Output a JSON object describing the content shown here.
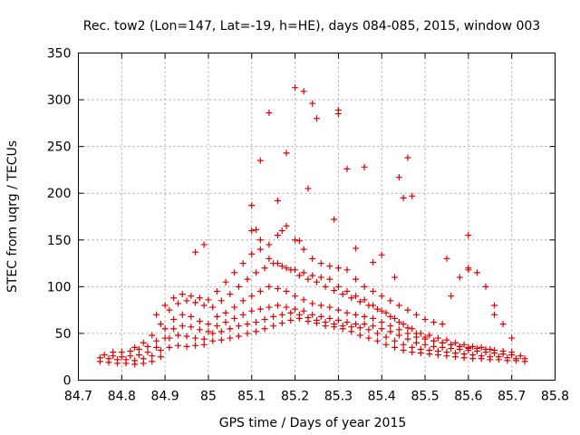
{
  "chart_data": {
    "type": "scatter",
    "title": "Rec. tow2 (Lon=147, Lat=-19, h=HE), days 084-085, 2015, window 003",
    "xlabel": "GPS time / Days of year 2015",
    "ylabel": "STEC from uqrg / TECUs",
    "xlim": [
      84.7,
      85.8
    ],
    "ylim": [
      0,
      350
    ],
    "x_ticks": [
      "84.7",
      "84.8",
      "84.9",
      "85",
      "85.1",
      "85.2",
      "85.3",
      "85.4",
      "85.5",
      "85.6",
      "85.7",
      "85.8"
    ],
    "y_ticks": [
      "0",
      "50",
      "100",
      "150",
      "200",
      "250",
      "300",
      "350"
    ],
    "grid": true,
    "legend": "none",
    "marker": "plus",
    "color": "#dd0000",
    "series": [
      {
        "x": [
          84.75,
          84.77,
          84.79,
          84.81,
          84.83,
          84.85,
          84.87,
          84.89,
          84.91,
          84.93,
          84.95,
          84.97,
          84.99,
          85.01,
          85.03,
          85.05,
          85.07,
          85.09,
          85.11,
          85.13,
          85.15,
          85.17,
          85.19,
          85.21,
          85.23,
          85.25,
          85.27,
          85.29,
          85.31,
          85.33,
          85.35,
          85.37,
          85.39,
          85.41,
          85.43,
          85.45,
          85.47,
          85.49,
          85.51,
          85.53,
          85.55,
          85.57,
          85.59,
          85.61,
          85.63,
          85.65,
          85.67,
          85.69,
          85.71,
          85.73
        ],
        "y": [
          20,
          19,
          18,
          18,
          17,
          18,
          20,
          25,
          35,
          37,
          36,
          37,
          38,
          42,
          43,
          45,
          47,
          50,
          52,
          55,
          58,
          61,
          64,
          66,
          63,
          61,
          58,
          57,
          55,
          52,
          48,
          45,
          42,
          38,
          35,
          32,
          30,
          29,
          28,
          27,
          26,
          25,
          24,
          23,
          23,
          22,
          22,
          21,
          21,
          20
        ]
      },
      {
        "x": [
          84.75,
          84.77,
          84.79,
          84.81,
          84.83,
          84.85,
          84.87,
          84.89,
          84.91,
          84.93,
          84.95,
          84.97,
          84.99,
          85.01,
          85.03,
          85.05,
          85.07,
          85.09,
          85.11,
          85.13,
          85.15,
          85.17,
          85.19,
          85.21,
          85.23,
          85.25,
          85.27,
          85.29,
          85.31,
          85.33,
          85.35,
          85.37,
          85.39,
          85.41,
          85.43,
          85.45,
          85.47,
          85.49,
          85.51,
          85.53,
          85.55,
          85.57,
          85.59,
          85.61,
          85.63,
          85.65,
          85.67,
          85.69,
          85.71,
          85.73
        ],
        "y": [
          24,
          23,
          22,
          22,
          21,
          23,
          26,
          32,
          45,
          48,
          47,
          45,
          44,
          50,
          52,
          55,
          58,
          60,
          62,
          65,
          68,
          70,
          72,
          70,
          67,
          64,
          62,
          60,
          58,
          57,
          56,
          54,
          50,
          46,
          42,
          38,
          35,
          33,
          32,
          31,
          30,
          29,
          28,
          27,
          26,
          25,
          25,
          24,
          23,
          23
        ]
      },
      {
        "x": [
          84.76,
          84.78,
          84.8,
          84.82,
          84.84,
          84.86,
          84.88,
          84.9,
          84.92,
          84.94,
          84.96,
          84.98,
          85.0,
          85.02,
          85.04,
          85.06,
          85.08,
          85.1,
          85.12,
          85.14,
          85.16,
          85.18,
          85.2,
          85.22,
          85.24,
          85.26,
          85.28,
          85.3,
          85.32,
          85.34,
          85.36,
          85.38,
          85.4,
          85.42,
          85.44,
          85.46,
          85.48,
          85.5,
          85.52,
          85.54,
          85.56,
          85.58,
          85.6,
          85.62,
          85.64,
          85.66,
          85.68,
          85.7,
          85.72
        ],
        "y": [
          27,
          26,
          25,
          26,
          27,
          30,
          35,
          45,
          55,
          58,
          57,
          54,
          52,
          58,
          62,
          66,
          70,
          74,
          76,
          78,
          80,
          78,
          76,
          74,
          70,
          68,
          66,
          64,
          62,
          60,
          60,
          58,
          55,
          52,
          48,
          44,
          40,
          38,
          36,
          35,
          34,
          33,
          32,
          31,
          30,
          29,
          28,
          27,
          26
        ]
      },
      {
        "x": [
          84.78,
          84.8,
          84.82,
          84.84,
          84.86,
          84.88,
          84.9,
          84.92,
          84.94,
          84.96,
          84.98,
          85.0,
          85.02,
          85.04,
          85.06,
          85.08,
          85.1,
          85.12,
          85.14,
          85.16,
          85.18,
          85.2,
          85.22,
          85.24,
          85.26,
          85.28,
          85.3,
          85.32,
          85.34,
          85.36,
          85.38,
          85.4,
          85.42,
          85.44,
          85.46,
          85.48,
          85.5,
          85.52,
          85.54,
          85.56,
          85.58,
          85.6,
          85.62,
          85.64,
          85.66,
          85.68,
          85.7
        ],
        "y": [
          30,
          30,
          31,
          33,
          36,
          42,
          55,
          65,
          70,
          68,
          63,
          60,
          68,
          72,
          78,
          85,
          90,
          95,
          100,
          98,
          95,
          90,
          86,
          82,
          80,
          78,
          75,
          72,
          70,
          68,
          66,
          62,
          58,
          54,
          50,
          46,
          44,
          42,
          40,
          38,
          36,
          35,
          34,
          33,
          32,
          31,
          30
        ]
      },
      {
        "x": [
          84.83,
          84.85,
          84.87,
          84.89,
          84.91,
          84.93,
          84.95,
          84.97,
          84.99,
          85.01,
          85.03,
          85.05,
          85.07,
          85.09,
          85.11,
          85.13,
          85.15,
          85.17,
          85.19,
          85.21,
          85.23,
          85.25,
          85.27,
          85.29,
          85.31,
          85.33,
          85.35,
          85.37,
          85.39,
          85.41,
          85.43,
          85.45,
          85.47,
          85.49,
          85.51,
          85.53,
          85.55,
          85.57,
          85.59,
          85.61,
          85.63,
          85.65
        ],
        "y": [
          35,
          40,
          48,
          60,
          75,
          82,
          85,
          83,
          80,
          78,
          85,
          92,
          100,
          108,
          115,
          120,
          125,
          122,
          118,
          112,
          108,
          105,
          100,
          96,
          92,
          88,
          84,
          80,
          76,
          72,
          66,
          60,
          55,
          50,
          48,
          45,
          43,
          40,
          38,
          36,
          35,
          33
        ]
      },
      {
        "x": [
          84.88,
          84.9,
          84.92,
          84.94,
          84.96,
          84.98,
          85.0,
          85.02,
          85.04,
          85.06,
          85.08,
          85.1,
          85.12,
          85.14,
          85.16,
          85.18,
          85.2,
          85.22,
          85.24,
          85.26,
          85.28,
          85.3,
          85.32,
          85.34,
          85.36,
          85.38,
          85.4,
          85.42,
          85.44,
          85.46,
          85.48,
          85.5,
          85.52,
          85.54,
          85.56,
          85.58,
          85.6
        ],
        "y": [
          70,
          80,
          88,
          92,
          90,
          88,
          86,
          95,
          105,
          115,
          125,
          135,
          140,
          130,
          125,
          120,
          118,
          115,
          112,
          110,
          108,
          100,
          95,
          90,
          86,
          80,
          74,
          68,
          62,
          56,
          50,
          46,
          42,
          40,
          38,
          36,
          34
        ]
      },
      {
        "x": [
          85.1,
          85.12,
          85.14,
          85.16,
          85.18,
          85.2,
          85.22,
          85.24,
          85.26,
          85.28,
          85.3,
          85.32,
          85.34,
          85.36,
          85.38,
          85.4,
          85.42,
          85.44,
          85.46,
          85.48,
          85.5,
          85.52,
          85.54,
          85.56,
          85.58,
          85.6,
          85.62,
          85.64,
          85.66,
          85.68,
          85.7
        ],
        "y": [
          160,
          150,
          145,
          155,
          165,
          150,
          140,
          130,
          125,
          122,
          120,
          118,
          108,
          100,
          95,
          90,
          85,
          80,
          75,
          70,
          65,
          62,
          60,
          90,
          110,
          120,
          115,
          100,
          80,
          60,
          45
        ]
      },
      {
        "x": [
          85.1,
          85.11,
          85.12,
          85.14,
          85.16,
          85.17,
          85.18,
          85.2,
          85.21,
          85.22,
          85.23,
          85.24,
          85.25,
          85.29,
          85.3,
          85.3,
          85.32,
          85.34,
          85.36,
          85.38,
          85.4,
          85.43,
          85.44,
          85.45,
          85.46,
          85.47,
          85.55,
          85.6,
          85.66,
          84.97,
          84.99,
          85.6
        ],
        "y": [
          187,
          161,
          235,
          286,
          192,
          160,
          243,
          313,
          149,
          309,
          205,
          296,
          280,
          172,
          289,
          285,
          226,
          141,
          228,
          126,
          134,
          110,
          217,
          195,
          238,
          197,
          130,
          155,
          70,
          137,
          145,
          118
        ]
      }
    ]
  }
}
